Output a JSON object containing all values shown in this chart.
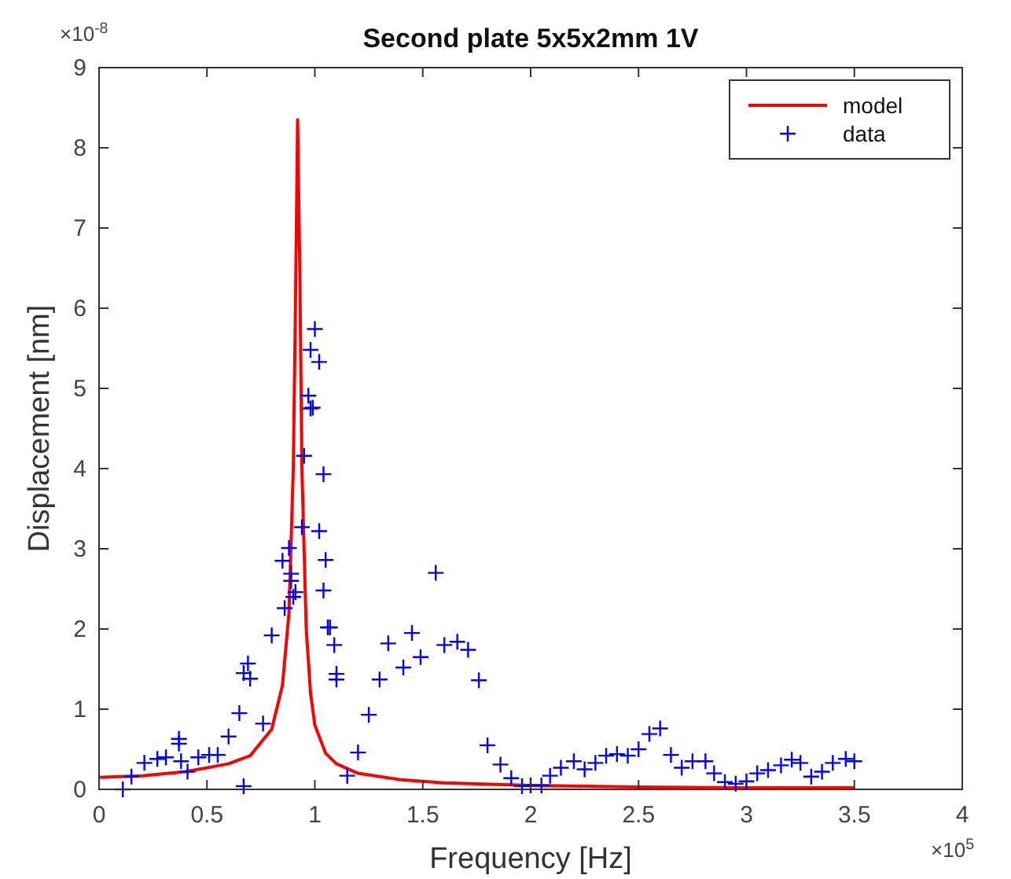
{
  "chart_data": {
    "type": "line",
    "title": "Second plate 5x5x2mm 1V",
    "xlabel": "Frequency [Hz]",
    "ylabel": "Displacement [nm]",
    "annotations": [
      "×10$^{-8}$",
      "×10$^{5}$"
    ],
    "xlim": [
      0,
      4
    ],
    "xticks": [
      0,
      0.5,
      1,
      1.5,
      2,
      2.5,
      3,
      3.5,
      4
    ],
    "ylim": [
      0,
      9
    ],
    "yticks": [
      0,
      1,
      2,
      3,
      4,
      5,
      6,
      7,
      8,
      9
    ],
    "grid": false,
    "legend": "top right",
    "series": [
      {
        "name": "model",
        "color": "#ff0000",
        "marker": "none",
        "line_style": "solid",
        "x": [
          0,
          0.2,
          0.4,
          0.6,
          0.7,
          0.8,
          0.85,
          0.88,
          0.9,
          0.91,
          0.92,
          0.93,
          0.94,
          0.96,
          0.98,
          1.0,
          1.05,
          1.1,
          1.2,
          1.4,
          1.6,
          2.0,
          2.5,
          3.0,
          3.5
        ],
        "values": [
          0.15,
          0.17,
          0.22,
          0.32,
          0.42,
          0.75,
          1.3,
          2.2,
          4.0,
          6.0,
          8.35,
          6.5,
          4.0,
          2.0,
          1.2,
          0.8,
          0.45,
          0.32,
          0.2,
          0.12,
          0.08,
          0.05,
          0.03,
          0.02,
          0.02
        ]
      },
      {
        "name": "data",
        "type": "scatter",
        "color": "#0000ff",
        "marker": "cross",
        "x": [
          0.11,
          0.15,
          0.21,
          0.27,
          0.31,
          0.37,
          0.37,
          0.38,
          0.41,
          0.46,
          0.51,
          0.55,
          0.6,
          0.65,
          0.67,
          0.69,
          0.67,
          0.7,
          0.76,
          0.8,
          0.85,
          0.88,
          0.86,
          0.89,
          0.89,
          0.9,
          0.91,
          0.94,
          0.95,
          0.97,
          0.98,
          0.99,
          0.98,
          1.0,
          1.02,
          1.04,
          1.02,
          1.05,
          1.04,
          1.06,
          1.07,
          1.09,
          1.1,
          1.1,
          1.15,
          1.2,
          1.25,
          1.3,
          1.34,
          1.41,
          1.45,
          1.49,
          1.56,
          1.6,
          1.66,
          1.71,
          1.76,
          1.8,
          1.86,
          1.91,
          1.96,
          2.0,
          2.05,
          2.09,
          2.14,
          2.2,
          2.25,
          2.3,
          2.35,
          2.4,
          2.45,
          2.5,
          2.55,
          2.6,
          2.65,
          2.7,
          2.75,
          2.81,
          2.85,
          2.9,
          2.95,
          3.0,
          3.05,
          3.1,
          3.16,
          3.21,
          3.25,
          3.3,
          3.35,
          3.4,
          3.46,
          3.5
        ],
        "values": [
          0.0,
          0.16,
          0.33,
          0.38,
          0.4,
          0.63,
          0.57,
          0.35,
          0.22,
          0.4,
          0.43,
          0.43,
          0.66,
          0.95,
          0.04,
          1.57,
          1.45,
          1.38,
          0.82,
          1.92,
          2.85,
          3.01,
          2.26,
          2.69,
          2.6,
          2.4,
          2.46,
          3.27,
          4.16,
          4.91,
          4.75,
          4.76,
          5.48,
          5.74,
          5.33,
          3.93,
          3.22,
          2.86,
          2.48,
          2.02,
          2.02,
          1.8,
          1.44,
          1.37,
          0.17,
          0.46,
          0.93,
          1.37,
          1.82,
          1.52,
          1.95,
          1.65,
          2.7,
          1.8,
          1.84,
          1.74,
          1.36,
          0.55,
          0.31,
          0.14,
          0.04,
          0.05,
          0.05,
          0.17,
          0.27,
          0.35,
          0.25,
          0.33,
          0.42,
          0.44,
          0.42,
          0.5,
          0.69,
          0.76,
          0.43,
          0.27,
          0.35,
          0.35,
          0.2,
          0.09,
          0.07,
          0.1,
          0.2,
          0.24,
          0.3,
          0.37,
          0.33,
          0.16,
          0.22,
          0.33,
          0.38,
          0.35
        ]
      }
    ]
  }
}
